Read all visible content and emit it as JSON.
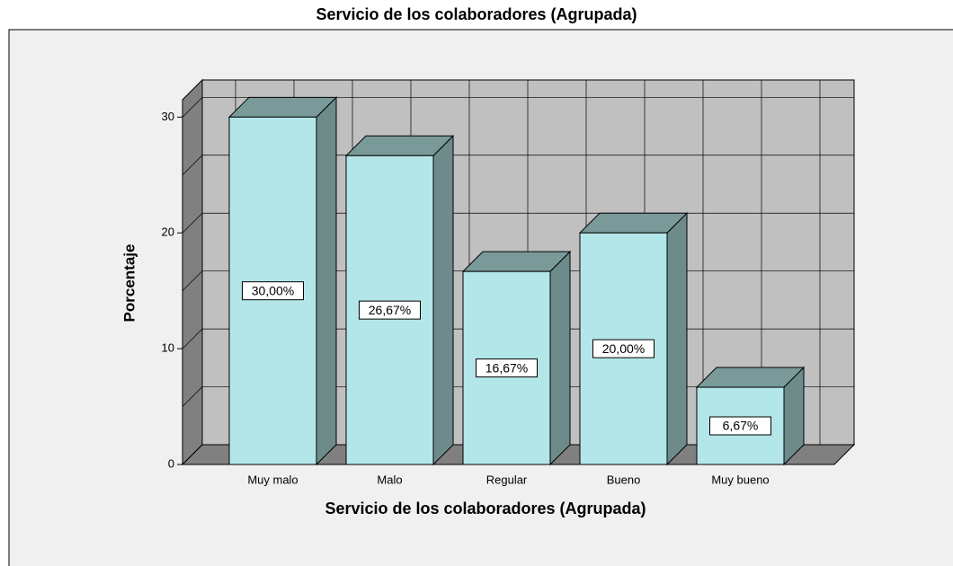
{
  "chart_data": {
    "type": "bar3d",
    "title": "Servicio de los colaboradores (Agrupada)",
    "x_label": "Servicio de los colaboradores (Agrupada)",
    "y_label": "Porcentaje",
    "categories": [
      "Muy malo",
      "Malo",
      "Regular",
      "Bueno",
      "Muy bueno"
    ],
    "values": [
      30,
      26.67,
      16.67,
      20,
      6.67
    ],
    "value_labels": [
      "30,00%",
      "26,67%",
      "16,67%",
      "20,00%",
      "6,67%"
    ],
    "color": "#b3e6e8",
    "ylim": [
      0,
      31.5
    ],
    "yticks": [
      0,
      10,
      20,
      30
    ],
    "minor_yticks": [
      5,
      15,
      25
    ],
    "grid": true
  }
}
